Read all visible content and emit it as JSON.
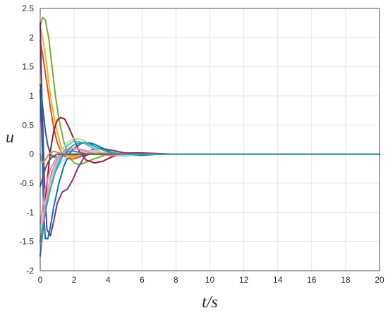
{
  "chart_data": {
    "type": "line",
    "title": "",
    "xlabel": "t/s",
    "ylabel": "u",
    "xlim": [
      0,
      20
    ],
    "ylim": [
      -2,
      2.5
    ],
    "xticks": [
      0,
      2,
      4,
      6,
      8,
      10,
      12,
      14,
      16,
      18,
      20
    ],
    "yticks": [
      -2,
      -1.5,
      -1,
      -0.5,
      0,
      0.5,
      1,
      1.5,
      2,
      2.5
    ],
    "ytick_labels": [
      "-2",
      "-1.5",
      "-1",
      "-0.5",
      "0",
      "0.5",
      "1",
      "1.5",
      "2",
      "2.5"
    ],
    "grid": true,
    "legend": "none",
    "series": [
      {
        "color": "#77ac30",
        "x": [
          0,
          0.15,
          0.3,
          0.5,
          0.7,
          0.9,
          1.1,
          1.4,
          1.7,
          2.0,
          2.3,
          2.6,
          3.0,
          3.5,
          4.0,
          4.5,
          5,
          6,
          8,
          20
        ],
        "y": [
          2.2,
          2.35,
          2.3,
          2.0,
          1.5,
          1.0,
          0.6,
          0.2,
          -0.05,
          -0.15,
          -0.18,
          -0.15,
          -0.1,
          -0.05,
          0.0,
          0.02,
          0.02,
          0.01,
          0.0,
          0.0
        ]
      },
      {
        "color": "#edb120",
        "x": [
          0,
          0.2,
          0.4,
          0.6,
          0.9,
          1.2,
          1.5,
          1.8,
          2.2,
          2.7,
          3.2,
          4,
          5,
          6,
          8,
          20
        ],
        "y": [
          2.2,
          1.9,
          1.5,
          1.0,
          0.5,
          0.15,
          0.0,
          -0.05,
          -0.05,
          0.0,
          0.03,
          0.03,
          0.02,
          0.01,
          0.0,
          0.0
        ]
      },
      {
        "color": "#d95319",
        "x": [
          0,
          0.2,
          0.4,
          0.6,
          0.8,
          1.0,
          1.3,
          1.6,
          2.0,
          2.5,
          3,
          4,
          6,
          20
        ],
        "y": [
          1.95,
          1.6,
          1.2,
          0.8,
          0.45,
          0.2,
          0.0,
          -0.08,
          -0.08,
          -0.03,
          0.0,
          0.01,
          0.0,
          0.0
        ]
      },
      {
        "color": "#a2142f",
        "x": [
          0,
          0.2,
          0.4,
          0.6,
          0.8,
          1.0,
          1.2,
          1.45,
          1.7,
          2.0,
          2.3,
          2.7,
          3.2,
          3.7,
          4.2,
          5,
          6,
          8,
          20
        ],
        "y": [
          -1.75,
          -1.2,
          -0.5,
          0.05,
          0.4,
          0.58,
          0.63,
          0.6,
          0.45,
          0.25,
          0.05,
          -0.1,
          -0.15,
          -0.12,
          -0.05,
          0.02,
          0.02,
          0.0,
          0.0
        ]
      },
      {
        "color": "#7e2f8e",
        "x": [
          0,
          0.1,
          0.25,
          0.4,
          0.6,
          0.8,
          1.0,
          1.3,
          1.6,
          1.9,
          2.2,
          2.6,
          3.0,
          3.5,
          4.0,
          4.5,
          5,
          6,
          7,
          8,
          20
        ],
        "y": [
          2.25,
          1.0,
          -0.5,
          -1.3,
          -1.4,
          -1.15,
          -0.85,
          -0.65,
          -0.6,
          -0.45,
          -0.25,
          -0.05,
          0.07,
          0.1,
          0.08,
          0.05,
          0.02,
          0.0,
          0.0,
          0.0,
          0.0
        ]
      },
      {
        "color": "#0072bd",
        "x": [
          0,
          0.1,
          0.2,
          0.3,
          0.45,
          0.6,
          0.8,
          1.1,
          1.4,
          1.7,
          2.0,
          2.4,
          2.8,
          3.2,
          3.7,
          4.2,
          5,
          6,
          7,
          8,
          20
        ],
        "y": [
          1.1,
          0.3,
          -1.0,
          -1.45,
          -1.45,
          -1.25,
          -0.9,
          -0.5,
          -0.2,
          0.0,
          0.1,
          0.18,
          0.2,
          0.17,
          0.1,
          0.03,
          -0.02,
          -0.02,
          0.0,
          0.0,
          0.0
        ]
      },
      {
        "color": "#4dbeee",
        "x": [
          0,
          0.2,
          0.4,
          0.6,
          0.9,
          1.2,
          1.6,
          2.0,
          2.5,
          3.0,
          3.5,
          4.0,
          5,
          6,
          7,
          20
        ],
        "y": [
          -1.5,
          -1.1,
          -0.8,
          -0.5,
          -0.25,
          -0.05,
          0.15,
          0.23,
          0.2,
          0.12,
          0.03,
          -0.02,
          -0.03,
          0.0,
          0.0,
          0.0
        ]
      },
      {
        "color": "#b2e0e0",
        "x": [
          0,
          0.3,
          0.6,
          0.9,
          1.2,
          1.6,
          2.0,
          2.5,
          3.0,
          3.5,
          4.0,
          5,
          6,
          20
        ],
        "y": [
          -1.3,
          -0.9,
          -0.55,
          -0.3,
          -0.15,
          -0.05,
          0.0,
          0.05,
          0.06,
          0.04,
          0.01,
          0.0,
          0.0,
          0.0
        ]
      },
      {
        "color": "#c9d98a",
        "x": [
          0,
          0.3,
          0.6,
          0.9,
          1.2,
          1.6,
          2.0,
          2.5,
          3.0,
          3.5,
          4.0,
          5,
          6,
          20
        ],
        "y": [
          -1.4,
          -0.9,
          -0.5,
          -0.2,
          0.05,
          0.2,
          0.27,
          0.25,
          0.15,
          0.05,
          -0.02,
          -0.02,
          0.0,
          0.0
        ]
      },
      {
        "color": "#4d7fb8",
        "x": [
          0,
          0.15,
          0.3,
          0.5,
          0.7,
          1.0,
          1.3,
          1.7,
          2.0,
          2.5,
          3.0,
          4,
          5,
          20
        ],
        "y": [
          -1.75,
          -1.3,
          -0.9,
          -0.55,
          -0.3,
          -0.1,
          0.0,
          0.05,
          0.05,
          0.02,
          0.0,
          0.0,
          0.0,
          0.0
        ]
      },
      {
        "color": "#1a5fa8",
        "x": [
          0,
          0.15,
          0.3,
          0.45,
          0.6,
          0.8,
          1.0,
          1.3,
          1.6,
          2.0,
          3.0,
          4,
          20
        ],
        "y": [
          1.2,
          0.8,
          0.4,
          0.15,
          0.0,
          -0.05,
          -0.05,
          -0.02,
          0.0,
          0.0,
          0.0,
          0.0,
          0.0
        ]
      },
      {
        "color": "#d98c40",
        "x": [
          0,
          0.1,
          0.3,
          0.5,
          0.8,
          1.1,
          1.5,
          2.0,
          2.5,
          3.0,
          4,
          5,
          20
        ],
        "y": [
          0.0,
          -0.15,
          -0.1,
          0.0,
          0.05,
          0.02,
          -0.02,
          -0.03,
          0.0,
          0.02,
          0.01,
          0.0,
          0.0
        ]
      },
      {
        "color": "#ff9ecf",
        "x": [
          0,
          0.2,
          0.5,
          0.8,
          1.1,
          1.5,
          2.0,
          2.5,
          3.0,
          3.5,
          4.0,
          5,
          6,
          20
        ],
        "y": [
          -1.55,
          -1.0,
          -0.55,
          -0.25,
          -0.05,
          0.05,
          0.1,
          0.08,
          0.04,
          0.0,
          -0.02,
          -0.01,
          0.0,
          0.0
        ]
      },
      {
        "color": "#e08a9c",
        "x": [
          0,
          0.3,
          0.6,
          1.0,
          1.4,
          1.8,
          2.3,
          2.8,
          3.3,
          4.0,
          5,
          6,
          20
        ],
        "y": [
          -1.2,
          -0.6,
          -0.25,
          -0.05,
          0.05,
          0.1,
          0.08,
          0.04,
          0.0,
          -0.02,
          0.0,
          0.0,
          0.0
        ]
      },
      {
        "color": "#5a5a5a",
        "x": [
          0,
          0.15,
          0.3,
          0.5,
          0.7,
          1.0,
          1.4,
          2.0,
          3.0,
          20
        ],
        "y": [
          -0.55,
          -0.4,
          -0.25,
          -0.12,
          -0.05,
          0.0,
          0.0,
          0.0,
          0.0,
          0.0
        ]
      },
      {
        "color": "#2ca9a9",
        "x": [
          0,
          0.3,
          0.6,
          0.9,
          1.3,
          1.7,
          2.1,
          2.6,
          3.1,
          3.6,
          4.2,
          5,
          6,
          20
        ],
        "y": [
          -1.5,
          -1.0,
          -0.6,
          -0.3,
          -0.05,
          0.1,
          0.18,
          0.2,
          0.15,
          0.08,
          0.02,
          0.0,
          0.0,
          0.0
        ]
      }
    ]
  }
}
